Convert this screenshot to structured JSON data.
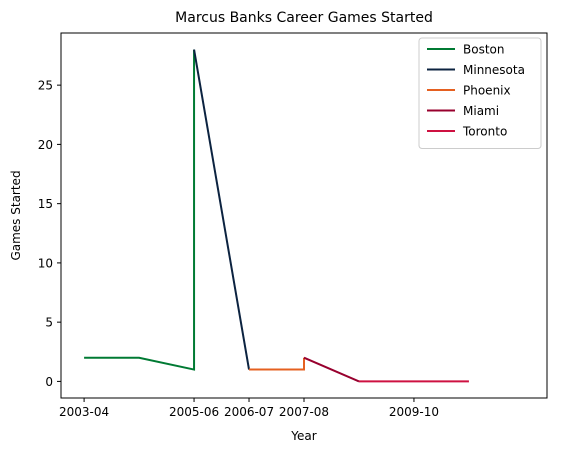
{
  "chart_data": {
    "type": "line",
    "title": "Marcus Banks Career Games Started",
    "xlabel": "Year",
    "ylabel": "Games Started",
    "x_ticks": [
      "2003-04",
      "2005-06",
      "2006-07",
      "2007-08",
      "2009-10"
    ],
    "y_ticks": [
      "0",
      "5",
      "10",
      "15",
      "20",
      "25"
    ],
    "ylim": [
      -1.4,
      29.4
    ],
    "grid": false,
    "legend_position": "top-right",
    "series": [
      {
        "name": "Boston",
        "color": "#007a33",
        "x": [
          "2003-04",
          "2004-05",
          "2005-06",
          "2005-06"
        ],
        "y": [
          2,
          2,
          1,
          28
        ]
      },
      {
        "name": "Minnesota",
        "color": "#0c2340",
        "x": [
          "2005-06",
          "2006-07"
        ],
        "y": [
          28,
          1
        ]
      },
      {
        "name": "Phoenix",
        "color": "#e56020",
        "x": [
          "2006-07",
          "2007-08",
          "2007-08"
        ],
        "y": [
          1,
          1,
          2
        ]
      },
      {
        "name": "Miami",
        "color": "#98002e",
        "x": [
          "2007-08",
          "2008-09"
        ],
        "y": [
          2,
          0
        ]
      },
      {
        "name": "Toronto",
        "color": "#ce1141",
        "x": [
          "2008-09",
          "2009-10",
          "2010-11"
        ],
        "y": [
          0,
          0,
          0
        ]
      }
    ]
  }
}
